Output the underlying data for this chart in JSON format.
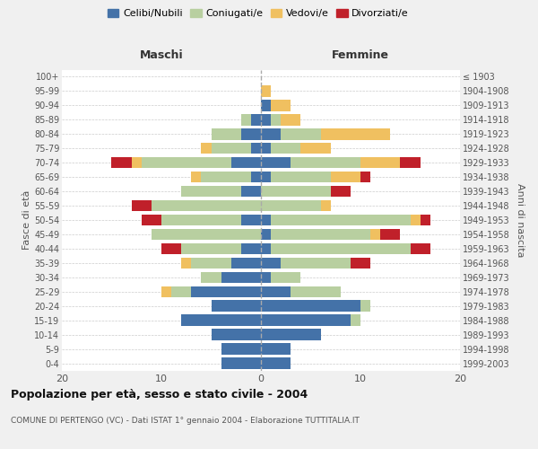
{
  "age_groups": [
    "0-4",
    "5-9",
    "10-14",
    "15-19",
    "20-24",
    "25-29",
    "30-34",
    "35-39",
    "40-44",
    "45-49",
    "50-54",
    "55-59",
    "60-64",
    "65-69",
    "70-74",
    "75-79",
    "80-84",
    "85-89",
    "90-94",
    "95-99",
    "100+"
  ],
  "birth_years": [
    "1999-2003",
    "1994-1998",
    "1989-1993",
    "1984-1988",
    "1979-1983",
    "1974-1978",
    "1969-1973",
    "1964-1968",
    "1959-1963",
    "1954-1958",
    "1949-1953",
    "1944-1948",
    "1939-1943",
    "1934-1938",
    "1929-1933",
    "1924-1928",
    "1919-1923",
    "1914-1918",
    "1909-1913",
    "1904-1908",
    "≤ 1903"
  ],
  "males": {
    "celibi": [
      4,
      4,
      5,
      8,
      5,
      7,
      4,
      3,
      2,
      0,
      2,
      0,
      2,
      1,
      3,
      1,
      2,
      1,
      0,
      0,
      0
    ],
    "coniugati": [
      0,
      0,
      0,
      0,
      0,
      2,
      2,
      4,
      6,
      11,
      8,
      11,
      6,
      5,
      9,
      4,
      3,
      1,
      0,
      0,
      0
    ],
    "vedovi": [
      0,
      0,
      0,
      0,
      0,
      1,
      0,
      1,
      0,
      0,
      0,
      0,
      0,
      1,
      1,
      1,
      0,
      0,
      0,
      0,
      0
    ],
    "divorziati": [
      0,
      0,
      0,
      0,
      0,
      0,
      0,
      0,
      2,
      0,
      2,
      2,
      0,
      0,
      2,
      0,
      0,
      0,
      0,
      0,
      0
    ]
  },
  "females": {
    "nubili": [
      3,
      3,
      6,
      9,
      10,
      3,
      1,
      2,
      1,
      1,
      1,
      0,
      0,
      1,
      3,
      1,
      2,
      1,
      1,
      0,
      0
    ],
    "coniugate": [
      0,
      0,
      0,
      1,
      1,
      5,
      3,
      7,
      14,
      10,
      14,
      6,
      7,
      6,
      7,
      3,
      4,
      1,
      0,
      0,
      0
    ],
    "vedove": [
      0,
      0,
      0,
      0,
      0,
      0,
      0,
      0,
      0,
      1,
      1,
      1,
      0,
      3,
      4,
      3,
      7,
      2,
      2,
      1,
      0
    ],
    "divorziate": [
      0,
      0,
      0,
      0,
      0,
      0,
      0,
      2,
      2,
      2,
      1,
      0,
      2,
      1,
      2,
      0,
      0,
      0,
      0,
      0,
      0
    ]
  },
  "colors": {
    "celibi": "#4472A8",
    "coniugati": "#B8CFA0",
    "vedovi": "#F0C060",
    "divorziati": "#C0202A"
  },
  "xlim": 20,
  "title": "Popolazione per età, sesso e stato civile - 2004",
  "subtitle": "COMUNE DI PERTENGO (VC) - Dati ISTAT 1° gennaio 2004 - Elaborazione TUTTITALIA.IT",
  "ylabel_left": "Fasce di età",
  "ylabel_right": "Anni di nascita",
  "xlabel_left": "Maschi",
  "xlabel_right": "Femmine",
  "bg_color": "#f0f0f0",
  "plot_bg_color": "#ffffff"
}
